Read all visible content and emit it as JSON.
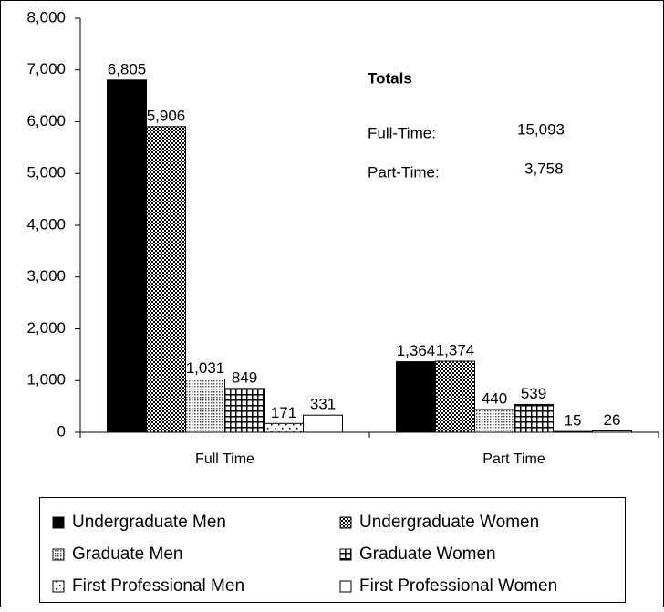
{
  "chart_data": {
    "type": "bar",
    "categories": [
      "Full Time",
      "Part Time"
    ],
    "series": [
      {
        "name": "Undergraduate Men",
        "color": "#000000",
        "pattern": "solid",
        "values": [
          6805,
          1364
        ],
        "value_labels": [
          "6,805",
          "1,364"
        ]
      },
      {
        "name": "Undergraduate Women",
        "color": "#000000",
        "pattern": "checker",
        "values": [
          5906,
          1374
        ],
        "value_labels": [
          "5,906",
          "1,374"
        ]
      },
      {
        "name": "Graduate Men",
        "color": "#000000",
        "pattern": "dense-dots",
        "values": [
          1031,
          440
        ],
        "value_labels": [
          "1,031",
          "440"
        ]
      },
      {
        "name": "Graduate Women",
        "color": "#000000",
        "pattern": "grid",
        "values": [
          849,
          539
        ],
        "value_labels": [
          "849",
          "539"
        ]
      },
      {
        "name": "First Professional Men",
        "color": "#000000",
        "pattern": "sparse-dots",
        "values": [
          171,
          15
        ],
        "value_labels": [
          "171",
          "15"
        ]
      },
      {
        "name": "First Professional Women",
        "color": "#000000",
        "pattern": "none",
        "values": [
          331,
          26
        ],
        "value_labels": [
          "331",
          "26"
        ]
      }
    ],
    "ylim": [
      0,
      8000
    ],
    "yticks": [
      0,
      {
        "value": 1000,
        "label": "1,000"
      },
      {
        "value": 2000,
        "label": "2,000"
      },
      {
        "value": 3000,
        "label": "3,000"
      },
      {
        "value": 4000,
        "label": "4,000"
      },
      {
        "value": 5000,
        "label": "5,000"
      },
      {
        "value": 6000,
        "label": "6,000"
      },
      {
        "value": 7000,
        "label": "7,000"
      },
      {
        "value": 8000,
        "label": "8,000"
      }
    ],
    "grid": false,
    "legend": "bottom",
    "annotation": {
      "title": "Totals",
      "rows": [
        {
          "label": "Full-Time:",
          "value": "15,093"
        },
        {
          "label": "Part-Time:",
          "value": "3,758"
        }
      ]
    }
  }
}
